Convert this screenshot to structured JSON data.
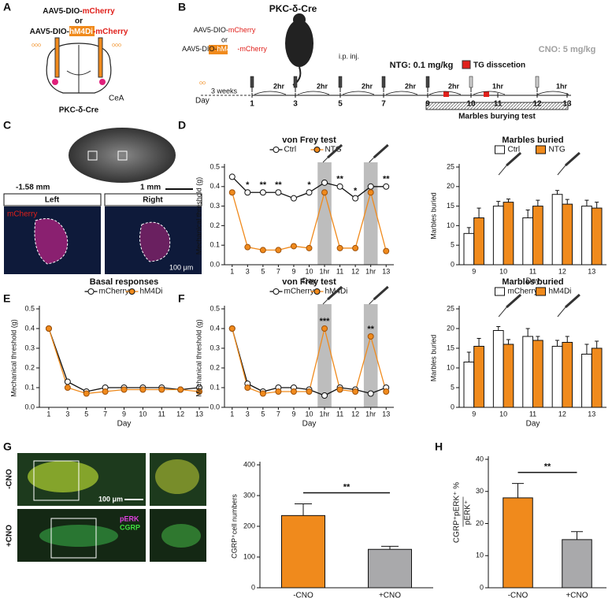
{
  "panels": [
    "A",
    "B",
    "C",
    "D",
    "E",
    "F",
    "G",
    "H"
  ],
  "schematic_a": {
    "virus_1": [
      "AAV5-DIO-",
      "mCherry"
    ],
    "or": "or",
    "virus_2": [
      "AAV5-DIO-",
      "hM4Di",
      "-mCherry"
    ],
    "region": "CeA",
    "mouse": "PKC-δ-Cre"
  },
  "timeline_b": {
    "mouse": "PKC-δ-Cre",
    "virus_1": [
      "AAV5-DIO-",
      "mCherry"
    ],
    "or": "or",
    "virus_2": [
      "AAV5-DIO-",
      "hM4Di",
      "-mCherry"
    ],
    "injection": "i.p. inj.",
    "cno": "CNO: 5 mg/kg",
    "ntg": "NTG: 0.1 mg/kg",
    "dissection": "TG disscetion",
    "day": "Day",
    "wait": "3 weeks",
    "days": [
      "1",
      "3",
      "5",
      "7",
      "9",
      "10",
      "11",
      "12",
      "13"
    ],
    "intervals": [
      "2hr",
      "2hr",
      "2hr",
      "2hr",
      "2hr",
      "1hr",
      "1hr"
    ],
    "test": "Marbles burying test"
  },
  "panel_c": {
    "bregma": "-1.58 mm",
    "scale_large": "1 mm",
    "left": "Left",
    "right": "Right",
    "stain": "mCherry",
    "scale_small": "100 μm"
  },
  "panel_g": {
    "minus": "-CNO",
    "plus": "+CNO",
    "scale": "100 μm",
    "stain_1": "pERK",
    "stain_2": "CGRP"
  },
  "chart_data": [
    {
      "type": "line",
      "title": "von Frey test",
      "xlabel": "Day",
      "ylabel": "Mechanical threshold (g)",
      "categories": [
        "1",
        "3",
        "5",
        "7",
        "9",
        "10",
        "1hr",
        "11",
        "12",
        "1hr",
        "13"
      ],
      "series": [
        {
          "name": "Ctrl",
          "color": "#111111",
          "marker_fill": "#ffffff",
          "values": [
            0.45,
            0.37,
            0.37,
            0.37,
            0.34,
            0.37,
            0.42,
            0.4,
            0.34,
            0.4,
            0.4
          ]
        },
        {
          "name": "NTG",
          "color": "#f08a1c",
          "marker_fill": "#f08a1c",
          "values": [
            0.37,
            0.09,
            0.075,
            0.075,
            0.095,
            0.085,
            0.37,
            0.085,
            0.085,
            0.37,
            0.07
          ]
        }
      ],
      "significance": [
        null,
        "*",
        "**",
        "**",
        null,
        "*",
        null,
        "**",
        "*",
        null,
        "**"
      ],
      "highlight": [
        6,
        9
      ],
      "ylim": [
        0,
        0.5
      ],
      "yticks": [
        {
          "value": 0,
          "label": "0.0"
        },
        0.1,
        0.2,
        0.3,
        0.4,
        0.5
      ]
    },
    {
      "type": "bar",
      "title": "Marbles buried",
      "xlabel": "Day",
      "ylabel": "Marbles buried",
      "categories": [
        "9",
        "10",
        "11",
        "12",
        "13"
      ],
      "series": [
        {
          "name": "Ctrl",
          "color": "#ffffff",
          "values": [
            8,
            15,
            12,
            18,
            15
          ],
          "errors": [
            1.5,
            1.2,
            2,
            1,
            1.5
          ]
        },
        {
          "name": "NTG",
          "color": "#f08a1c",
          "values": [
            12,
            16,
            15,
            15.5,
            14.5
          ],
          "errors": [
            2.5,
            0.8,
            1.5,
            1.2,
            1.5
          ]
        }
      ],
      "ylim": [
        0,
        25
      ],
      "yticks": [
        0,
        5,
        10,
        15,
        20,
        25
      ]
    },
    {
      "type": "line",
      "title": "Basal responses",
      "xlabel": "Day",
      "ylabel": "Mechanical threshold (g)",
      "categories": [
        "1",
        "3",
        "5",
        "7",
        "9",
        "10",
        "11",
        "12",
        "13"
      ],
      "series": [
        {
          "name": "mCherry",
          "color": "#111111",
          "marker_fill": "#ffffff",
          "values": [
            0.4,
            0.13,
            0.08,
            0.1,
            0.1,
            0.1,
            0.1,
            0.09,
            0.1
          ]
        },
        {
          "name": "hM4Di",
          "color": "#f08a1c",
          "marker_fill": "#f08a1c",
          "values": [
            0.4,
            0.1,
            0.07,
            0.08,
            0.09,
            0.09,
            0.09,
            0.09,
            0.08
          ]
        }
      ],
      "ylim": [
        0,
        0.5
      ],
      "yticks": [
        {
          "value": 0,
          "label": "0.0"
        },
        0.1,
        0.2,
        0.3,
        0.4,
        0.5
      ]
    },
    {
      "type": "line",
      "title": "von Frey test",
      "xlabel": "Day",
      "ylabel": "Mechanical threshold (g)",
      "categories": [
        "1",
        "3",
        "5",
        "7",
        "9",
        "10",
        "1hr",
        "11",
        "12",
        "1hr",
        "13"
      ],
      "series": [
        {
          "name": "mCherry",
          "color": "#111111",
          "marker_fill": "#ffffff",
          "values": [
            0.4,
            0.12,
            0.08,
            0.1,
            0.1,
            0.09,
            0.06,
            0.1,
            0.09,
            0.07,
            0.1
          ]
        },
        {
          "name": "hM4Di",
          "color": "#f08a1c",
          "marker_fill": "#f08a1c",
          "values": [
            0.4,
            0.1,
            0.07,
            0.08,
            0.08,
            0.08,
            0.4,
            0.09,
            0.08,
            0.36,
            0.08
          ]
        }
      ],
      "significance": [
        null,
        null,
        null,
        null,
        null,
        null,
        "***",
        null,
        null,
        "**",
        null
      ],
      "highlight": [
        6,
        9
      ],
      "ylim": [
        0,
        0.5
      ],
      "yticks": [
        {
          "value": 0,
          "label": "0.0"
        },
        0.1,
        0.2,
        0.3,
        0.4,
        0.5
      ]
    },
    {
      "type": "bar",
      "title": "Marbles buried",
      "xlabel": "Day",
      "ylabel": "Marbles buried",
      "categories": [
        "9",
        "10",
        "11",
        "12",
        "13"
      ],
      "series": [
        {
          "name": "mCherry",
          "color": "#ffffff",
          "values": [
            11.5,
            19.5,
            18,
            15.5,
            13.5
          ],
          "errors": [
            2.5,
            1,
            2,
            1.5,
            2.5
          ]
        },
        {
          "name": "hM4Di",
          "color": "#f08a1c",
          "values": [
            15.5,
            16,
            17,
            16.5,
            15
          ],
          "errors": [
            2,
            1.2,
            1,
            1.5,
            1.8
          ]
        }
      ],
      "ylim": [
        0,
        25
      ],
      "yticks": [
        0,
        5,
        10,
        15,
        20,
        25
      ]
    },
    {
      "type": "bar",
      "ylabel": "CGRP⁺cell numbers",
      "categories": [
        "-CNO",
        "+CNO"
      ],
      "values": [
        235,
        125
      ],
      "errors": [
        38,
        10
      ],
      "colors": [
        "#f08a1c",
        "#a9a9ab"
      ],
      "significance": "**",
      "ylim": [
        0,
        400
      ],
      "yticks": [
        0,
        100,
        200,
        300,
        400
      ]
    },
    {
      "type": "bar",
      "ylabel": "CGRP⁺pERK⁺ %",
      "ylabel_2": "pERK⁺",
      "categories": [
        "-CNO",
        "+CNO"
      ],
      "values": [
        28,
        15
      ],
      "errors": [
        4.5,
        2.5
      ],
      "colors": [
        "#f08a1c",
        "#a9a9ab"
      ],
      "significance": "**",
      "ylim": [
        0,
        40
      ],
      "yticks": [
        0,
        10,
        20,
        30,
        40
      ]
    }
  ]
}
